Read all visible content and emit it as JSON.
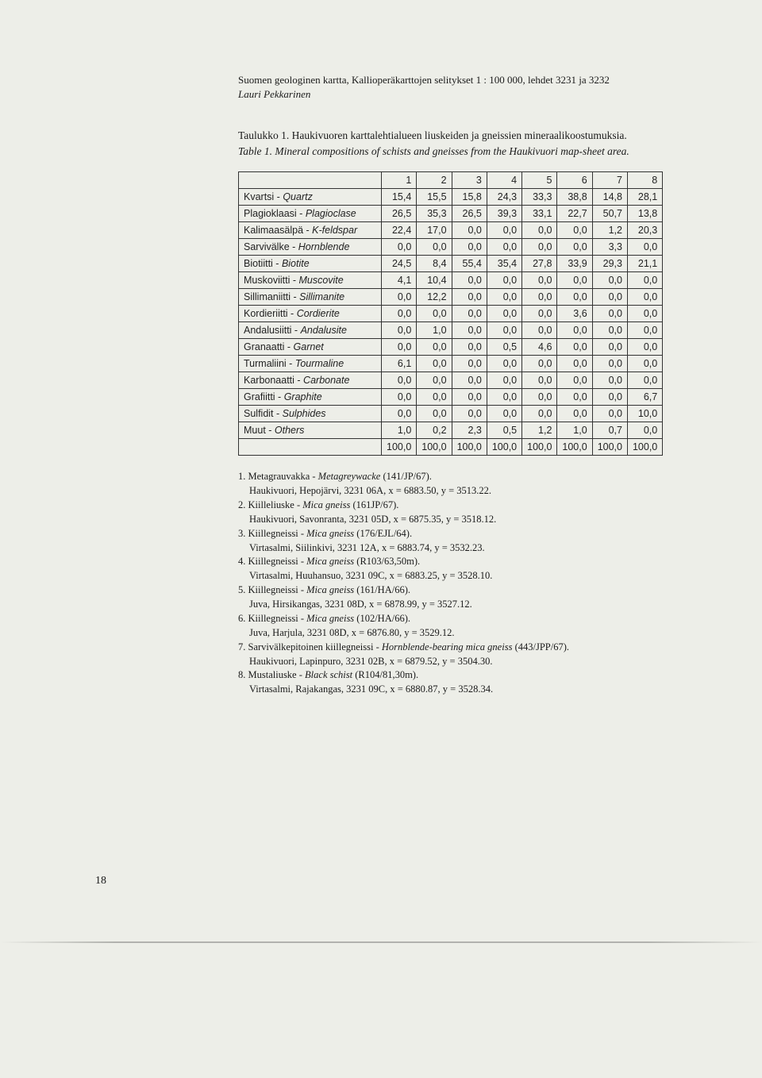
{
  "header": {
    "line1": "Suomen geologinen kartta, Kallioperäkarttojen selitykset 1 : 100 000, lehdet 3231 ja 3232",
    "author": "Lauri Pekkarinen"
  },
  "caption": {
    "fi": "Taulukko 1. Haukivuoren karttalehtialueen liuskeiden ja gneissien mineraalikoostumuksia.",
    "en": "Table 1. Mineral compositions of schists and gneisses from the Haukivuori map-sheet area."
  },
  "table": {
    "columns": [
      "1",
      "2",
      "3",
      "4",
      "5",
      "6",
      "7",
      "8"
    ],
    "rows": [
      {
        "label_fi": "Kvartsi",
        "label_en": "Quartz",
        "vals": [
          "15,4",
          "15,5",
          "15,8",
          "24,3",
          "33,3",
          "38,8",
          "14,8",
          "28,1"
        ]
      },
      {
        "label_fi": "Plagioklaasi",
        "label_en": "Plagioclase",
        "vals": [
          "26,5",
          "35,3",
          "26,5",
          "39,3",
          "33,1",
          "22,7",
          "50,7",
          "13,8"
        ]
      },
      {
        "label_fi": "Kalimaasälpä",
        "label_en": "K-feldspar",
        "vals": [
          "22,4",
          "17,0",
          "0,0",
          "0,0",
          "0,0",
          "0,0",
          "1,2",
          "20,3"
        ]
      },
      {
        "label_fi": "Sarvivälke",
        "label_en": "Hornblende",
        "vals": [
          "0,0",
          "0,0",
          "0,0",
          "0,0",
          "0,0",
          "0,0",
          "3,3",
          "0,0"
        ]
      },
      {
        "label_fi": "Biotiitti",
        "label_en": "Biotite",
        "vals": [
          "24,5",
          "8,4",
          "55,4",
          "35,4",
          "27,8",
          "33,9",
          "29,3",
          "21,1"
        ]
      },
      {
        "label_fi": "Muskoviitti",
        "label_en": "Muscovite",
        "vals": [
          "4,1",
          "10,4",
          "0,0",
          "0,0",
          "0,0",
          "0,0",
          "0,0",
          "0,0"
        ]
      },
      {
        "label_fi": "Sillimaniitti",
        "label_en": "Sillimanite",
        "vals": [
          "0,0",
          "12,2",
          "0,0",
          "0,0",
          "0,0",
          "0,0",
          "0,0",
          "0,0"
        ]
      },
      {
        "label_fi": "Kordieriitti",
        "label_en": "Cordierite",
        "vals": [
          "0,0",
          "0,0",
          "0,0",
          "0,0",
          "0,0",
          "3,6",
          "0,0",
          "0,0"
        ]
      },
      {
        "label_fi": "Andalusiitti",
        "label_en": "Andalusite",
        "vals": [
          "0,0",
          "1,0",
          "0,0",
          "0,0",
          "0,0",
          "0,0",
          "0,0",
          "0,0"
        ]
      },
      {
        "label_fi": "Granaatti",
        "label_en": "Garnet",
        "vals": [
          "0,0",
          "0,0",
          "0,0",
          "0,5",
          "4,6",
          "0,0",
          "0,0",
          "0,0"
        ]
      },
      {
        "label_fi": "Turmaliini",
        "label_en": "Tourmaline",
        "vals": [
          "6,1",
          "0,0",
          "0,0",
          "0,0",
          "0,0",
          "0,0",
          "0,0",
          "0,0"
        ]
      },
      {
        "label_fi": "Karbonaatti",
        "label_en": "Carbonate",
        "vals": [
          "0,0",
          "0,0",
          "0,0",
          "0,0",
          "0,0",
          "0,0",
          "0,0",
          "0,0"
        ]
      },
      {
        "label_fi": "Grafiitti",
        "label_en": "Graphite",
        "vals": [
          "0,0",
          "0,0",
          "0,0",
          "0,0",
          "0,0",
          "0,0",
          "0,0",
          "6,7"
        ]
      },
      {
        "label_fi": "Sulfidit",
        "label_en": "Sulphides",
        "vals": [
          "0,0",
          "0,0",
          "0,0",
          "0,0",
          "0,0",
          "0,0",
          "0,0",
          "10,0"
        ]
      },
      {
        "label_fi": "Muut",
        "label_en": "Others",
        "vals": [
          "1,0",
          "0,2",
          "2,3",
          "0,5",
          "1,2",
          "1,0",
          "0,7",
          "0,0"
        ]
      }
    ],
    "totals": [
      "100,0",
      "100,0",
      "100,0",
      "100,0",
      "100,0",
      "100,0",
      "100,0",
      "100,0"
    ]
  },
  "notes": [
    {
      "n": "1.",
      "a": "Metagrauvakka - ",
      "i": "Metagreywacke",
      "b": " (141/JP/67).",
      "sub": "Haukivuori, Hepojärvi, 3231 06A, x = 6883.50, y = 3513.22."
    },
    {
      "n": "2.",
      "a": "Kiilleliuske - ",
      "i": "Mica gneiss",
      "b": " (161JP/67).",
      "sub": "Haukivuori, Savonranta, 3231 05D, x = 6875.35, y = 3518.12."
    },
    {
      "n": "3.",
      "a": "Kiillegneissi - ",
      "i": "Mica gneiss",
      "b": " (176/EJL/64).",
      "sub": "Virtasalmi, Siilinkivi, 3231 12A, x = 6883.74, y = 3532.23."
    },
    {
      "n": "4.",
      "a": "Kiillegneissi - ",
      "i": "Mica gneiss",
      "b": " (R103/63,50m).",
      "sub": "Virtasalmi, Huuhansuo, 3231 09C, x = 6883.25, y = 3528.10."
    },
    {
      "n": "5.",
      "a": "Kiillegneissi - ",
      "i": "Mica gneiss",
      "b": " (161/HA/66).",
      "sub": "Juva, Hirsikangas, 3231 08D, x = 6878.99, y = 3527.12."
    },
    {
      "n": "6.",
      "a": "Kiillegneissi - ",
      "i": "Mica gneiss",
      "b": " (102/HA/66).",
      "sub": "Juva, Harjula, 3231 08D, x = 6876.80, y = 3529.12."
    },
    {
      "n": "7.",
      "a": "Sarvivälkepitoinen kiillegneissi - ",
      "i": "Hornblende-bearing mica gneiss",
      "b": " (443/JPP/67).",
      "sub": "Haukivuori, Lapinpuro, 3231 02B, x = 6879.52, y = 3504.30."
    },
    {
      "n": "8.",
      "a": "Mustaliuske - ",
      "i": "Black schist",
      "b": " (R104/81,30m).",
      "sub": "Virtasalmi, Rajakangas, 3231 09C, x = 6880.87, y = 3528.34."
    }
  ],
  "page_number": "18"
}
